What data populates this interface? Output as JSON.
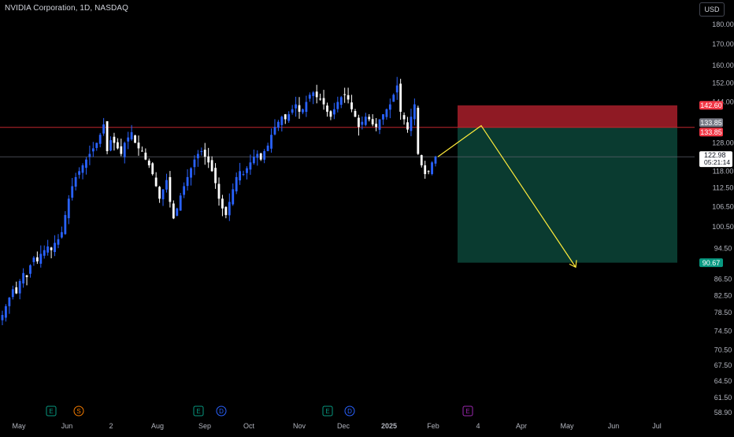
{
  "header": {
    "title": "NVIDIA Corporation, 1D, NASDAQ",
    "currency": "USD"
  },
  "colors": {
    "up": "#2962ff",
    "down": "#ffffff",
    "stop_zone": "#a81f2a",
    "target_zone": "#0a3b30",
    "target_label": "#089981",
    "stop_label": "#f23645",
    "entry_line": "#c1272d",
    "arrow": "#ffeb3b",
    "background": "#000000"
  },
  "chart_data": {
    "type": "candlestick",
    "symbol": "NVDA",
    "scale": "log",
    "ylim": [
      58.9,
      190
    ],
    "price_ticks": [
      "180.00",
      "170.00",
      "160.00",
      "152.00",
      "144.00",
      "128.00",
      "118.00",
      "112.50",
      "106.50",
      "100.50",
      "94.50",
      "86.50",
      "82.50",
      "78.50",
      "74.50",
      "70.50",
      "67.50",
      "64.50",
      "61.50",
      "58.90"
    ],
    "x_labels": [
      "May",
      "Jun",
      "2",
      "Aug",
      "Sep",
      "Oct",
      "Nov",
      "Dec",
      "2025",
      "Feb",
      "4",
      "Apr",
      "May",
      "Jun",
      "Jul"
    ],
    "event_markers": [
      {
        "label": "E",
        "type": "earnings",
        "color": "#089981"
      },
      {
        "label": "S",
        "type": "split",
        "color": "#f57c00"
      },
      {
        "label": "E",
        "type": "earnings",
        "color": "#089981"
      },
      {
        "label": "D",
        "type": "dividend",
        "color": "#2962ff"
      },
      {
        "label": "E",
        "type": "earnings",
        "color": "#089981"
      },
      {
        "label": "D",
        "type": "dividend",
        "color": "#2962ff"
      },
      {
        "label": "E",
        "type": "earnings",
        "color": "#9c27b0"
      }
    ],
    "price_labels": [
      {
        "text": "142.60",
        "value": 142.6,
        "role": "stop"
      },
      {
        "text": "133.85",
        "value": 133.85,
        "role": "entry"
      },
      {
        "text": "133.85",
        "value": 133.85,
        "role": "entry"
      },
      {
        "text": "122.98",
        "value": 122.98,
        "role": "last"
      },
      {
        "text": "90.67",
        "value": 90.67,
        "role": "target"
      }
    ],
    "countdown": "05:21:14",
    "position": {
      "type": "short",
      "stop": 142.6,
      "entry": 133.85,
      "target": 90.67
    },
    "close_series": [
      78,
      80,
      82,
      84,
      83,
      86,
      88,
      87,
      90,
      92,
      91,
      93,
      94,
      95,
      94,
      96,
      97,
      99,
      104,
      109,
      113,
      116,
      118,
      120,
      122,
      124,
      126,
      128,
      131,
      135,
      125,
      129,
      128,
      126,
      124,
      128,
      130,
      132,
      128,
      126,
      125,
      122,
      120,
      117,
      113,
      109,
      112,
      115,
      108,
      103,
      106,
      110,
      113,
      116,
      119,
      122,
      124,
      125,
      123,
      121,
      118,
      114,
      109,
      106,
      104,
      108,
      112,
      116,
      118,
      117,
      119,
      121,
      123,
      124,
      122,
      125,
      127,
      131,
      134,
      136,
      138,
      137,
      139,
      141,
      143,
      140,
      141,
      144,
      147,
      148,
      146,
      145,
      143,
      140,
      138,
      141,
      144,
      146,
      147,
      145,
      141,
      138,
      134,
      136,
      138,
      137,
      135,
      134,
      137,
      139,
      141,
      143,
      147,
      151,
      140,
      137,
      133,
      138,
      143,
      124,
      120,
      117,
      118,
      121,
      122.98
    ]
  }
}
